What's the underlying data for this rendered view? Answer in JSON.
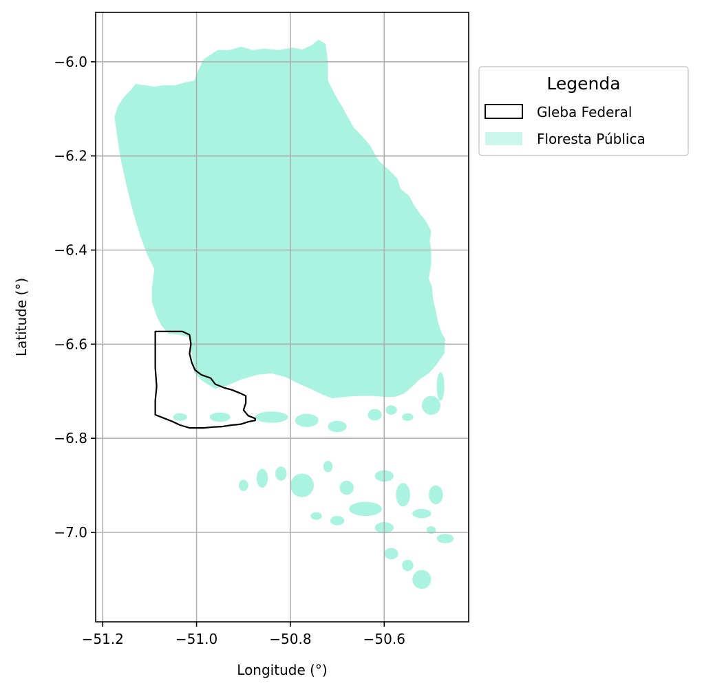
{
  "chart_data": {
    "type": "map",
    "xlabel": "Longitude (°)",
    "ylabel": "Latitude (°)",
    "xlim": [
      -51.215,
      -50.42
    ],
    "ylim": [
      -7.19,
      -5.895
    ],
    "xticks": [
      {
        "value": -51.2,
        "label": "−51.2"
      },
      {
        "value": -51.0,
        "label": "−51.0"
      },
      {
        "value": -50.8,
        "label": "−50.8"
      },
      {
        "value": -50.6,
        "label": "−50.6"
      }
    ],
    "yticks": [
      {
        "value": -6.0,
        "label": "−6.0"
      },
      {
        "value": -6.2,
        "label": "−6.2"
      },
      {
        "value": -6.4,
        "label": "−6.4"
      },
      {
        "value": -6.6,
        "label": "−6.6"
      },
      {
        "value": -6.8,
        "label": "−6.8"
      },
      {
        "value": -7.0,
        "label": "−7.0"
      }
    ],
    "grid": true,
    "legend": {
      "title": "Legenda",
      "placement": "outside-right-top",
      "entries": [
        {
          "label": "Gleba Federal",
          "style": "outline",
          "color": "#000000"
        },
        {
          "label": "Floresta Pública",
          "style": "fill",
          "color": "#aaf3e0"
        }
      ]
    },
    "colors": {
      "forest": "#aaf3e0",
      "gleba_edge": "#000000",
      "grid": "#b0b0b0"
    },
    "layers": {
      "floresta_publica_main": [
        [
          -51.175,
          -6.117
        ],
        [
          -51.168,
          -6.095
        ],
        [
          -51.155,
          -6.075
        ],
        [
          -51.14,
          -6.06
        ],
        [
          -51.13,
          -6.047
        ],
        [
          -51.11,
          -6.05
        ],
        [
          -51.09,
          -6.053
        ],
        [
          -51.07,
          -6.05
        ],
        [
          -51.045,
          -6.05
        ],
        [
          -51.025,
          -6.044
        ],
        [
          -51.005,
          -6.04
        ],
        [
          -50.995,
          -6.015
        ],
        [
          -50.985,
          -5.995
        ],
        [
          -50.955,
          -5.975
        ],
        [
          -50.93,
          -5.975
        ],
        [
          -50.905,
          -5.968
        ],
        [
          -50.88,
          -5.975
        ],
        [
          -50.855,
          -5.972
        ],
        [
          -50.825,
          -5.975
        ],
        [
          -50.795,
          -5.97
        ],
        [
          -50.775,
          -5.974
        ],
        [
          -50.755,
          -5.965
        ],
        [
          -50.74,
          -5.953
        ],
        [
          -50.725,
          -5.962
        ],
        [
          -50.72,
          -6.0
        ],
        [
          -50.72,
          -6.04
        ],
        [
          -50.705,
          -6.07
        ],
        [
          -50.69,
          -6.095
        ],
        [
          -50.665,
          -6.14
        ],
        [
          -50.65,
          -6.155
        ],
        [
          -50.63,
          -6.178
        ],
        [
          -50.612,
          -6.21
        ],
        [
          -50.59,
          -6.23
        ],
        [
          -50.572,
          -6.248
        ],
        [
          -50.565,
          -6.27
        ],
        [
          -50.547,
          -6.285
        ],
        [
          -50.535,
          -6.307
        ],
        [
          -50.522,
          -6.325
        ],
        [
          -50.51,
          -6.34
        ],
        [
          -50.5,
          -6.36
        ],
        [
          -50.503,
          -6.38
        ],
        [
          -50.5,
          -6.4
        ],
        [
          -50.5,
          -6.43
        ],
        [
          -50.505,
          -6.46
        ],
        [
          -50.498,
          -6.48
        ],
        [
          -50.496,
          -6.505
        ],
        [
          -50.49,
          -6.53
        ],
        [
          -50.485,
          -6.555
        ],
        [
          -50.478,
          -6.575
        ],
        [
          -50.47,
          -6.59
        ],
        [
          -50.472,
          -6.62
        ],
        [
          -50.49,
          -6.645
        ],
        [
          -50.505,
          -6.662
        ],
        [
          -50.525,
          -6.675
        ],
        [
          -50.54,
          -6.69
        ],
        [
          -50.558,
          -6.705
        ],
        [
          -50.578,
          -6.712
        ],
        [
          -50.6,
          -6.712
        ],
        [
          -50.625,
          -6.71
        ],
        [
          -50.655,
          -6.71
        ],
        [
          -50.685,
          -6.712
        ],
        [
          -50.71,
          -6.715
        ],
        [
          -50.73,
          -6.708
        ],
        [
          -50.75,
          -6.698
        ],
        [
          -50.78,
          -6.685
        ],
        [
          -50.81,
          -6.67
        ],
        [
          -50.84,
          -6.662
        ],
        [
          -50.87,
          -6.665
        ],
        [
          -50.905,
          -6.675
        ],
        [
          -50.935,
          -6.688
        ],
        [
          -50.96,
          -6.695
        ],
        [
          -50.985,
          -6.68
        ],
        [
          -51.005,
          -6.66
        ],
        [
          -51.01,
          -6.62
        ],
        [
          -51.015,
          -6.585
        ],
        [
          -51.035,
          -6.58
        ],
        [
          -51.06,
          -6.578
        ],
        [
          -51.075,
          -6.56
        ],
        [
          -51.085,
          -6.54
        ],
        [
          -51.095,
          -6.51
        ],
        [
          -51.095,
          -6.48
        ],
        [
          -51.09,
          -6.44
        ],
        [
          -51.105,
          -6.41
        ],
        [
          -51.12,
          -6.37
        ],
        [
          -51.135,
          -6.32
        ],
        [
          -51.15,
          -6.26
        ],
        [
          -51.163,
          -6.2
        ],
        [
          -51.175,
          -6.117
        ]
      ],
      "floresta_publica_fragments": [
        {
          "lon": -50.84,
          "lat": -6.755,
          "rx": 0.035,
          "ry": 0.012
        },
        {
          "lon": -50.765,
          "lat": -6.762,
          "rx": 0.025,
          "ry": 0.014
        },
        {
          "lon": -50.7,
          "lat": -6.775,
          "rx": 0.02,
          "ry": 0.012
        },
        {
          "lon": -50.95,
          "lat": -6.755,
          "rx": 0.022,
          "ry": 0.01
        },
        {
          "lon": -51.035,
          "lat": -6.755,
          "rx": 0.015,
          "ry": 0.008
        },
        {
          "lon": -50.5,
          "lat": -6.73,
          "rx": 0.02,
          "ry": 0.02
        },
        {
          "lon": -50.48,
          "lat": -6.69,
          "rx": 0.008,
          "ry": 0.03
        },
        {
          "lon": -50.585,
          "lat": -6.74,
          "rx": 0.012,
          "ry": 0.01
        },
        {
          "lon": -50.55,
          "lat": -6.755,
          "rx": 0.012,
          "ry": 0.008
        },
        {
          "lon": -50.62,
          "lat": -6.75,
          "rx": 0.015,
          "ry": 0.012
        },
        {
          "lon": -50.86,
          "lat": -6.885,
          "rx": 0.012,
          "ry": 0.02
        },
        {
          "lon": -50.82,
          "lat": -6.875,
          "rx": 0.012,
          "ry": 0.015
        },
        {
          "lon": -50.775,
          "lat": -6.9,
          "rx": 0.025,
          "ry": 0.025
        },
        {
          "lon": -50.72,
          "lat": -6.86,
          "rx": 0.01,
          "ry": 0.012
        },
        {
          "lon": -50.68,
          "lat": -6.905,
          "rx": 0.015,
          "ry": 0.015
        },
        {
          "lon": -50.64,
          "lat": -6.95,
          "rx": 0.035,
          "ry": 0.015
        },
        {
          "lon": -50.6,
          "lat": -6.88,
          "rx": 0.02,
          "ry": 0.012
        },
        {
          "lon": -50.56,
          "lat": -6.92,
          "rx": 0.015,
          "ry": 0.025
        },
        {
          "lon": -50.52,
          "lat": -6.96,
          "rx": 0.02,
          "ry": 0.01
        },
        {
          "lon": -50.49,
          "lat": -6.92,
          "rx": 0.015,
          "ry": 0.02
        },
        {
          "lon": -50.7,
          "lat": -6.975,
          "rx": 0.015,
          "ry": 0.01
        },
        {
          "lon": -50.745,
          "lat": -6.965,
          "rx": 0.012,
          "ry": 0.008
        },
        {
          "lon": -50.585,
          "lat": -7.045,
          "rx": 0.015,
          "ry": 0.012
        },
        {
          "lon": -50.55,
          "lat": -7.07,
          "rx": 0.012,
          "ry": 0.012
        },
        {
          "lon": -50.52,
          "lat": -7.1,
          "rx": 0.02,
          "ry": 0.02
        },
        {
          "lon": -50.47,
          "lat": -7.013,
          "rx": 0.018,
          "ry": 0.01
        },
        {
          "lon": -50.6,
          "lat": -6.99,
          "rx": 0.02,
          "ry": 0.012
        },
        {
          "lon": -50.9,
          "lat": -6.9,
          "rx": 0.01,
          "ry": 0.012
        },
        {
          "lon": -50.5,
          "lat": -6.995,
          "rx": 0.01,
          "ry": 0.008
        }
      ],
      "gleba_federal": [
        [
          -51.088,
          -6.573
        ],
        [
          -51.05,
          -6.573
        ],
        [
          -51.03,
          -6.573
        ],
        [
          -51.015,
          -6.58
        ],
        [
          -51.012,
          -6.6
        ],
        [
          -51.015,
          -6.62
        ],
        [
          -51.01,
          -6.64
        ],
        [
          -51.003,
          -6.655
        ],
        [
          -50.99,
          -6.665
        ],
        [
          -50.97,
          -6.672
        ],
        [
          -50.96,
          -6.685
        ],
        [
          -50.94,
          -6.693
        ],
        [
          -50.925,
          -6.697
        ],
        [
          -50.905,
          -6.705
        ],
        [
          -50.895,
          -6.71
        ],
        [
          -50.895,
          -6.725
        ],
        [
          -50.9,
          -6.74
        ],
        [
          -50.89,
          -6.752
        ],
        [
          -50.875,
          -6.758
        ],
        [
          -50.875,
          -6.762
        ],
        [
          -50.89,
          -6.765
        ],
        [
          -50.905,
          -6.77
        ],
        [
          -50.925,
          -6.772
        ],
        [
          -50.945,
          -6.775
        ],
        [
          -50.965,
          -6.776
        ],
        [
          -50.985,
          -6.778
        ],
        [
          -51.0,
          -6.778
        ],
        [
          -51.015,
          -6.778
        ],
        [
          -51.035,
          -6.772
        ],
        [
          -51.05,
          -6.765
        ],
        [
          -51.07,
          -6.757
        ],
        [
          -51.088,
          -6.75
        ],
        [
          -51.088,
          -6.72
        ],
        [
          -51.085,
          -6.69
        ],
        [
          -51.088,
          -6.65
        ],
        [
          -51.088,
          -6.61
        ],
        [
          -51.088,
          -6.573
        ]
      ]
    }
  }
}
